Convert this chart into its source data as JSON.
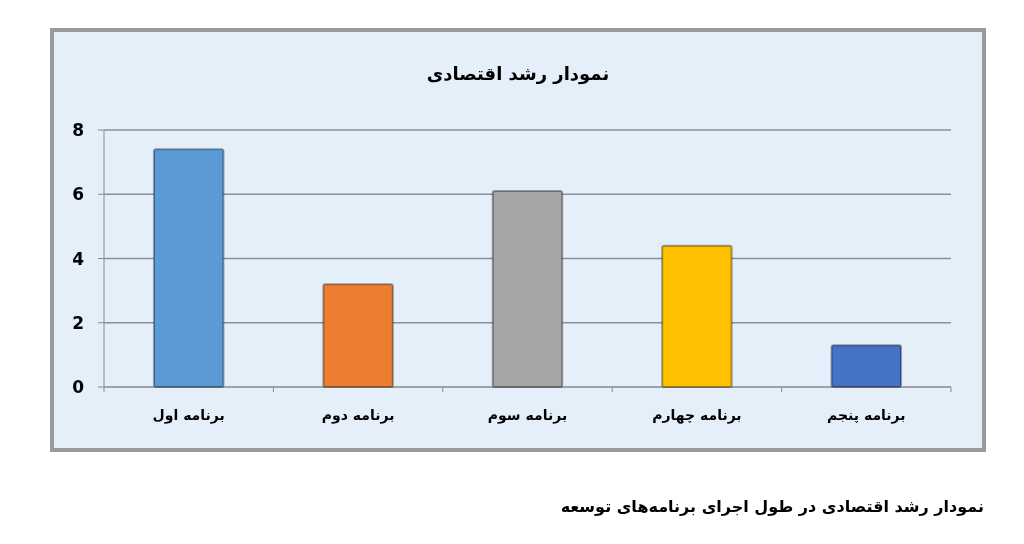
{
  "chart_data": {
    "type": "bar",
    "title": "نمودار رشد اقتصادی",
    "categories": [
      "برنامه اول",
      "برنامه دوم",
      "برنامه سوم",
      "برنامه چهارم",
      "برنامه پنجم"
    ],
    "values": [
      7.4,
      3.2,
      6.1,
      4.4,
      1.3
    ],
    "colors": [
      "#5b9bd5",
      "#ed7d31",
      "#a5a5a5",
      "#ffc000",
      "#4472c4"
    ],
    "ylim": [
      0,
      8
    ],
    "yticks": [
      0,
      2,
      4,
      6,
      8
    ],
    "grid": "y",
    "annotations": [
      "نمودار رشد اقتصادی در طول اجرای برنامه‌های توسعه"
    ]
  }
}
